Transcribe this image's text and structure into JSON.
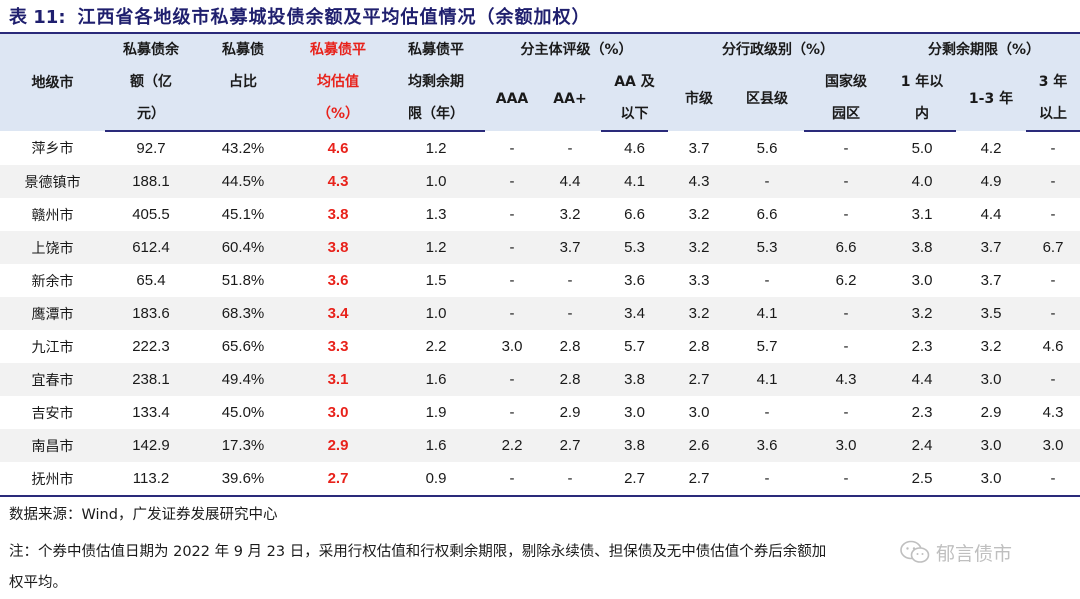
{
  "title": {
    "number": "表 11:",
    "text": "江西省各地级市私募城投债余额及平均估值情况（余额加权）"
  },
  "headers": {
    "city": "地级市",
    "balance": [
      "私募债余",
      "额（亿",
      "元）"
    ],
    "share": [
      "私募债",
      "占比"
    ],
    "avg_val": [
      "私募债平",
      "均估值",
      "（%）"
    ],
    "avg_term": [
      "私募债平",
      "均剩余期",
      "限（年）"
    ],
    "group_rating": "分主体评级（%）",
    "group_admin": "分行政级别（%）",
    "group_term": "分剩余期限（%）",
    "aaa": "AAA",
    "aaplus": "AA+",
    "aa_below": [
      "AA 及",
      "以下"
    ],
    "city_level": "市级",
    "county_level": "区县级",
    "national_park": [
      "国家级",
      "园区"
    ],
    "within_1y": [
      "1 年以",
      "内"
    ],
    "y1_3": "1-3 年",
    "over_3y": [
      "3 年",
      "以上"
    ]
  },
  "rows": [
    [
      "萍乡市",
      "92.7",
      "43.2%",
      "4.6",
      "1.2",
      "-",
      "-",
      "4.6",
      "3.7",
      "5.6",
      "-",
      "5.0",
      "4.2",
      "-"
    ],
    [
      "景德镇市",
      "188.1",
      "44.5%",
      "4.3",
      "1.0",
      "-",
      "4.4",
      "4.1",
      "4.3",
      "-",
      "-",
      "4.0",
      "4.9",
      "-"
    ],
    [
      "赣州市",
      "405.5",
      "45.1%",
      "3.8",
      "1.3",
      "-",
      "3.2",
      "6.6",
      "3.2",
      "6.6",
      "-",
      "3.1",
      "4.4",
      "-"
    ],
    [
      "上饶市",
      "612.4",
      "60.4%",
      "3.8",
      "1.2",
      "-",
      "3.7",
      "5.3",
      "3.2",
      "5.3",
      "6.6",
      "3.8",
      "3.7",
      "6.7"
    ],
    [
      "新余市",
      "65.4",
      "51.8%",
      "3.6",
      "1.5",
      "-",
      "-",
      "3.6",
      "3.3",
      "-",
      "6.2",
      "3.0",
      "3.7",
      "-"
    ],
    [
      "鹰潭市",
      "183.6",
      "68.3%",
      "3.4",
      "1.0",
      "-",
      "-",
      "3.4",
      "3.2",
      "4.1",
      "-",
      "3.2",
      "3.5",
      "-"
    ],
    [
      "九江市",
      "222.3",
      "65.6%",
      "3.3",
      "2.2",
      "3.0",
      "2.8",
      "5.7",
      "2.8",
      "5.7",
      "-",
      "2.3",
      "3.2",
      "4.6"
    ],
    [
      "宜春市",
      "238.1",
      "49.4%",
      "3.1",
      "1.6",
      "-",
      "2.8",
      "3.8",
      "2.7",
      "4.1",
      "4.3",
      "4.4",
      "3.0",
      "-"
    ],
    [
      "吉安市",
      "133.4",
      "45.0%",
      "3.0",
      "1.9",
      "-",
      "2.9",
      "3.0",
      "3.0",
      "-",
      "-",
      "2.3",
      "2.9",
      "4.3"
    ],
    [
      "南昌市",
      "142.9",
      "17.3%",
      "2.9",
      "1.6",
      "2.2",
      "2.7",
      "3.8",
      "2.6",
      "3.6",
      "3.0",
      "2.4",
      "3.0",
      "3.0"
    ],
    [
      "抚州市",
      "113.2",
      "39.6%",
      "2.7",
      "0.9",
      "-",
      "-",
      "2.7",
      "2.7",
      "-",
      "-",
      "2.5",
      "3.0",
      "-"
    ]
  ],
  "source": "数据来源：Wind，广发证券发展研究中心",
  "note_line1": "注：个券中债估值日期为 2022 年 9 月 23 日，采用行权估值和行权剩余期限，剔除永续债、担保债及无中债估值个券后余额加",
  "note_line2": "权平均。",
  "watermark": "郁言债市",
  "colors": {
    "header_bg": "#dde6f3",
    "highlight": "#e8221b",
    "title": "#1f1f6e",
    "rule": "#2a2a7a",
    "stripe": "#f2f2f2"
  }
}
